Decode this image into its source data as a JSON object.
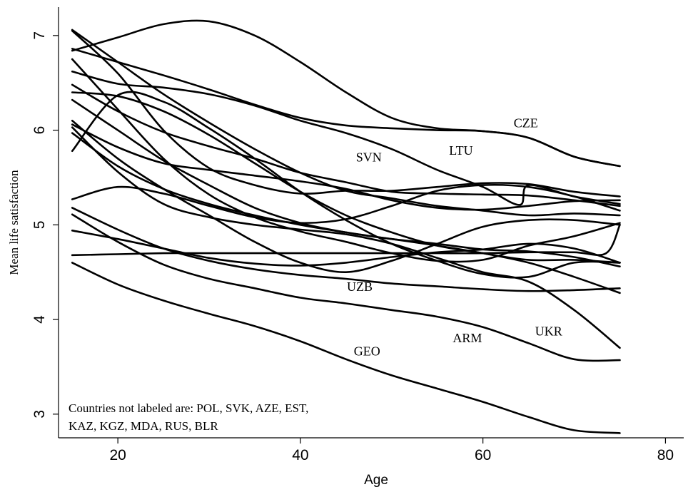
{
  "chart_data": {
    "type": "line",
    "xlabel": "Age",
    "ylabel": "Mean life satisfaction",
    "xlim": [
      13.5,
      82
    ],
    "ylim": [
      2.75,
      7.3
    ],
    "xticks": [
      20,
      40,
      60,
      80
    ],
    "yticks": [
      3,
      4,
      5,
      6,
      7
    ],
    "grid": false,
    "note_lines": [
      "Countries not labeled are: POL, SVK, AZE, EST,",
      "KAZ, KGZ, MDA, RUS, BLR"
    ],
    "series": [
      {
        "name": "CZE",
        "label_at": [
          64.7,
          6.03
        ],
        "x": [
          15,
          20,
          25,
          30,
          35,
          40,
          45,
          50,
          55,
          60,
          65,
          70,
          75
        ],
        "y": [
          6.86,
          6.72,
          6.58,
          6.43,
          6.27,
          6.13,
          6.05,
          6.02,
          6.0,
          5.99,
          5.92,
          5.72,
          5.62
        ]
      },
      {
        "name": "LTU",
        "label_at": [
          57.6,
          5.74
        ],
        "x": [
          15,
          20,
          25,
          30,
          35,
          40,
          45,
          50,
          55,
          60,
          64,
          65,
          70,
          75
        ],
        "y": [
          6.62,
          6.49,
          6.45,
          6.38,
          6.26,
          6.1,
          5.97,
          5.8,
          5.58,
          5.4,
          5.21,
          5.42,
          5.3,
          5.22
        ]
      },
      {
        "name": "SVN",
        "label_at": [
          47.5,
          5.67
        ],
        "x": [
          15,
          20,
          25,
          30,
          35,
          40,
          45,
          50,
          55,
          60,
          65,
          70,
          75
        ],
        "y": [
          6.84,
          6.98,
          7.12,
          7.15,
          7.0,
          6.72,
          6.4,
          6.13,
          6.02,
          5.99,
          5.92,
          5.72,
          5.62
        ]
      },
      {
        "name": "UZB",
        "label_at": [
          46.5,
          4.3
        ],
        "x": [
          15,
          20,
          25,
          30,
          35,
          40,
          45,
          50,
          55,
          60,
          65,
          70,
          75
        ],
        "y": [
          5.18,
          4.95,
          4.75,
          4.62,
          4.53,
          4.47,
          4.43,
          4.38,
          4.35,
          4.32,
          4.3,
          4.31,
          4.33
        ]
      },
      {
        "name": "ARM",
        "label_at": [
          58.3,
          3.76
        ],
        "x": [
          15,
          20,
          25,
          30,
          35,
          40,
          45,
          50,
          55,
          60,
          65,
          70,
          75
        ],
        "y": [
          5.11,
          4.82,
          4.58,
          4.43,
          4.33,
          4.23,
          4.17,
          4.1,
          4.03,
          3.92,
          3.75,
          3.58,
          3.57
        ]
      },
      {
        "name": "UKR",
        "label_at": [
          67.2,
          3.83
        ],
        "x": [
          15,
          20,
          25,
          30,
          35,
          40,
          45,
          50,
          55,
          60,
          65,
          70,
          75
        ],
        "y": [
          6.03,
          5.56,
          5.22,
          5.08,
          5.0,
          4.95,
          4.9,
          4.8,
          4.65,
          4.5,
          4.4,
          4.1,
          3.7
        ]
      },
      {
        "name": "GEO",
        "label_at": [
          47.3,
          3.62
        ],
        "x": [
          15,
          20,
          25,
          30,
          35,
          40,
          45,
          50,
          55,
          60,
          65,
          70,
          75
        ],
        "y": [
          4.6,
          4.37,
          4.2,
          4.06,
          3.93,
          3.77,
          3.58,
          3.41,
          3.27,
          3.13,
          2.97,
          2.83,
          2.8
        ]
      },
      {
        "name": "",
        "x": [
          15,
          20,
          25,
          30,
          35,
          40,
          45,
          50,
          55,
          60,
          65,
          70,
          75
        ],
        "y": [
          7.06,
          6.72,
          6.38,
          6.08,
          5.8,
          5.55,
          5.36,
          5.28,
          5.2,
          5.15,
          5.1,
          5.12,
          5.1
        ]
      },
      {
        "name": "",
        "x": [
          15,
          20,
          25,
          30,
          35,
          40,
          45,
          50,
          55,
          60,
          65,
          70,
          75
        ],
        "y": [
          7.05,
          6.6,
          6.0,
          5.6,
          5.42,
          5.33,
          5.36,
          5.36,
          5.4,
          5.44,
          5.43,
          5.35,
          5.3
        ]
      },
      {
        "name": "",
        "x": [
          15,
          20,
          25,
          30,
          35,
          40,
          45,
          50,
          55,
          60,
          65,
          70,
          75
        ],
        "y": [
          6.75,
          6.22,
          5.7,
          5.32,
          5.08,
          4.93,
          4.82,
          4.7,
          4.62,
          4.63,
          4.78,
          4.88,
          5.02
        ]
      },
      {
        "name": "",
        "x": [
          15,
          20,
          25,
          30,
          35,
          40,
          45,
          50,
          55,
          60,
          65,
          70,
          75
        ],
        "y": [
          6.4,
          6.36,
          6.2,
          5.95,
          5.65,
          5.35,
          5.1,
          4.92,
          4.78,
          4.7,
          4.63,
          4.63,
          4.6
        ]
      },
      {
        "name": "",
        "x": [
          15,
          20,
          25,
          30,
          35,
          40,
          45,
          50,
          55,
          60,
          65,
          70,
          75
        ],
        "y": [
          6.48,
          6.2,
          5.98,
          5.83,
          5.7,
          5.55,
          5.45,
          5.35,
          5.33,
          5.32,
          5.31,
          5.26,
          5.2
        ]
      },
      {
        "name": "",
        "x": [
          15,
          20,
          25,
          30,
          35,
          40,
          45,
          50,
          55,
          60,
          65,
          70,
          75
        ],
        "y": [
          5.78,
          6.37,
          6.3,
          6.02,
          5.7,
          5.35,
          5.05,
          4.8,
          4.62,
          4.48,
          4.45,
          4.6,
          4.6
        ]
      },
      {
        "name": "",
        "x": [
          15,
          20,
          25,
          30,
          35,
          40,
          45,
          50,
          55,
          60,
          65,
          70,
          75
        ],
        "y": [
          6.32,
          6.0,
          5.68,
          5.42,
          5.18,
          5.02,
          4.92,
          4.85,
          4.8,
          4.74,
          4.72,
          4.66,
          4.56
        ]
      },
      {
        "name": "",
        "x": [
          15,
          20,
          25,
          30,
          35,
          40,
          45,
          50,
          55,
          60,
          65,
          70,
          75
        ],
        "y": [
          6.06,
          5.82,
          5.65,
          5.58,
          5.52,
          5.46,
          5.38,
          5.26,
          5.18,
          5.16,
          5.2,
          5.25,
          5.26
        ]
      },
      {
        "name": "",
        "x": [
          15,
          20,
          25,
          30,
          35,
          40,
          45,
          50,
          55,
          60,
          65,
          70,
          75
        ],
        "y": [
          5.97,
          5.62,
          5.38,
          5.22,
          5.1,
          5.0,
          4.92,
          4.85,
          4.78,
          4.7,
          4.6,
          4.45,
          4.28
        ]
      },
      {
        "name": "",
        "x": [
          15,
          20,
          25,
          30,
          35,
          40,
          45,
          50,
          55,
          60,
          65,
          70,
          75
        ],
        "y": [
          5.27,
          5.4,
          5.33,
          5.2,
          5.08,
          5.02,
          5.06,
          5.2,
          5.36,
          5.42,
          5.4,
          5.3,
          5.15
        ]
      },
      {
        "name": "",
        "x": [
          15,
          20,
          25,
          30,
          35,
          40,
          45,
          50,
          55,
          60,
          65,
          70,
          75
        ],
        "y": [
          4.94,
          4.85,
          4.75,
          4.65,
          4.59,
          4.57,
          4.6,
          4.66,
          4.71,
          4.74,
          4.8,
          4.75,
          4.6
        ]
      },
      {
        "name": "",
        "x": [
          15,
          20,
          25,
          30,
          35,
          40,
          45,
          50,
          55,
          60,
          65,
          70,
          73.5,
          75
        ],
        "y": [
          4.68,
          4.69,
          4.7,
          4.7,
          4.7,
          4.7,
          4.7,
          4.7,
          4.7,
          4.7,
          4.71,
          4.71,
          4.7,
          5.0
        ]
      },
      {
        "name": "",
        "x": [
          15,
          20,
          25,
          30,
          35,
          40,
          45,
          50,
          55,
          60,
          65,
          70,
          75
        ],
        "y": [
          6.1,
          5.7,
          5.38,
          5.1,
          4.82,
          4.6,
          4.5,
          4.62,
          4.8,
          4.98,
          5.05,
          5.05,
          5.0
        ]
      }
    ]
  }
}
